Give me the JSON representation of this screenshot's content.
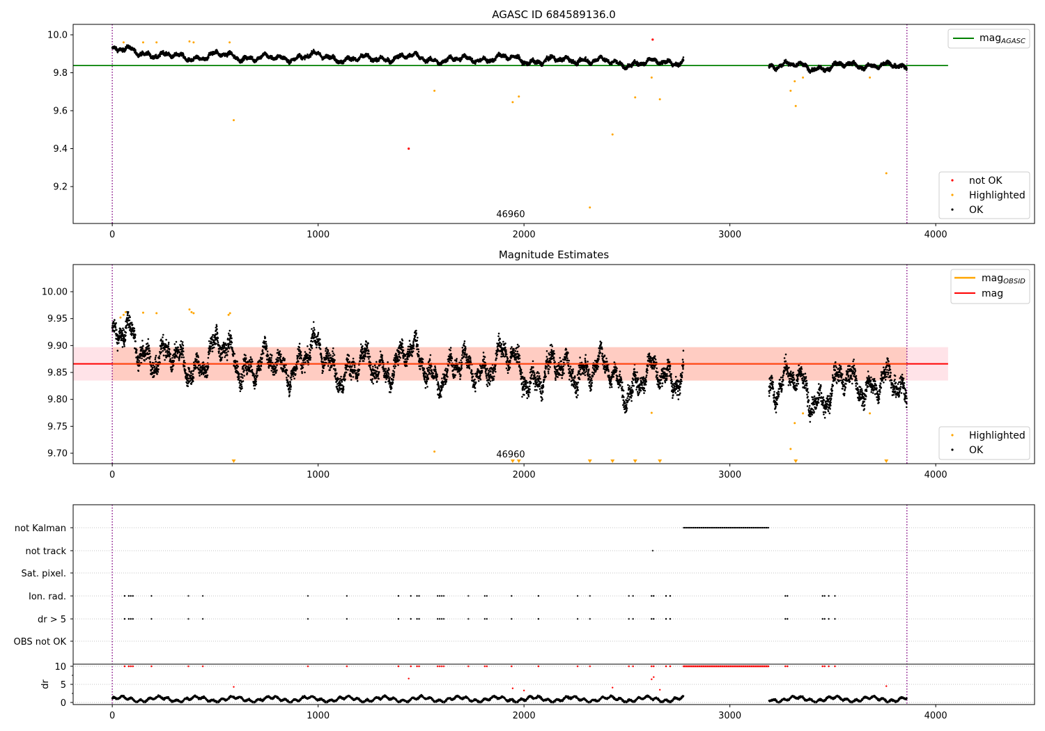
{
  "chart_data": [
    {
      "type": "scatter",
      "title": "AGASC ID 684589136.0",
      "xlim": [
        -190,
        4480
      ],
      "ylim": [
        9.0,
        10.05
      ],
      "x_ticks": [
        "0",
        "1000",
        "2000",
        "3000",
        "4000"
      ],
      "x_tick_values": [
        0,
        1000,
        2000,
        3000,
        4000
      ],
      "y_ticks": [
        "9.2",
        "9.4",
        "9.6",
        "9.8",
        "10.0"
      ],
      "y_tick_values": [
        9.2,
        9.4,
        9.6,
        9.8,
        10.0
      ],
      "obsid_label": "46960",
      "obsid_label_x": 1930,
      "vlines": [
        0,
        3860
      ],
      "hline": {
        "y": 9.838,
        "x": [
          -190,
          4060
        ],
        "color": "#008000"
      },
      "legend_upper": {
        "label": "mag",
        "sub": "AGASC",
        "placement": "top-right"
      },
      "legend_lower": {
        "placement": "bottom-right",
        "items": [
          {
            "label": "not OK",
            "color": "#ff0000"
          },
          {
            "label": "Highlighted",
            "color": "#ffa500"
          },
          {
            "label": "OK",
            "color": "#000000"
          }
        ]
      },
      "highlighted": [
        {
          "x": 55,
          "y": 9.96
        },
        {
          "x": 150,
          "y": 9.96
        },
        {
          "x": 215,
          "y": 9.96
        },
        {
          "x": 375,
          "y": 9.965
        },
        {
          "x": 395,
          "y": 9.96
        },
        {
          "x": 570,
          "y": 9.96
        },
        {
          "x": 590,
          "y": 9.55
        },
        {
          "x": 1565,
          "y": 9.705
        },
        {
          "x": 1945,
          "y": 9.645
        },
        {
          "x": 1975,
          "y": 9.675
        },
        {
          "x": 2320,
          "y": 9.09
        },
        {
          "x": 2430,
          "y": 9.475
        },
        {
          "x": 2540,
          "y": 9.67
        },
        {
          "x": 2620,
          "y": 9.775
        },
        {
          "x": 2660,
          "y": 9.66
        },
        {
          "x": 3295,
          "y": 9.705
        },
        {
          "x": 3315,
          "y": 9.755
        },
        {
          "x": 3320,
          "y": 9.625
        },
        {
          "x": 3355,
          "y": 9.775
        },
        {
          "x": 3680,
          "y": 9.775
        },
        {
          "x": 3760,
          "y": 9.27
        }
      ],
      "not_ok": [
        {
          "x": 1440,
          "y": 9.4
        },
        {
          "x": 2625,
          "y": 9.975
        }
      ]
    },
    {
      "type": "scatter",
      "title": "Magnitude Estimates",
      "xlim": [
        -190,
        4480
      ],
      "ylim": [
        9.68,
        10.05
      ],
      "x_ticks": [
        "0",
        "1000",
        "2000",
        "3000",
        "4000"
      ],
      "x_tick_values": [
        0,
        1000,
        2000,
        3000,
        4000
      ],
      "y_ticks": [
        "9.70",
        "9.75",
        "9.80",
        "9.85",
        "9.90",
        "9.95",
        "10.00"
      ],
      "y_tick_values": [
        9.7,
        9.75,
        9.8,
        9.85,
        9.9,
        9.95,
        10.0
      ],
      "obsid_label": "46960",
      "obsid_label_x": 1930,
      "vlines": [
        0,
        3860
      ],
      "mag_line": {
        "y": 9.866,
        "band": [
          9.835,
          9.897
        ],
        "x": [
          -190,
          4060
        ],
        "color": "#ff0000",
        "band_color": "#ffc0cb"
      },
      "obsid_band": {
        "x": [
          0,
          3860
        ],
        "band": [
          9.835,
          9.897
        ],
        "color": "#ffa07a"
      },
      "legend_upper": {
        "placement": "top-right",
        "items": [
          {
            "label": "mag",
            "sub": "OBSID",
            "color": "#ffa500"
          },
          {
            "label": "mag",
            "sub": "",
            "color": "#ff0000"
          }
        ]
      },
      "legend_lower": {
        "placement": "bottom-right",
        "items": [
          {
            "label": "Highlighted",
            "color": "#ffa500"
          },
          {
            "label": "OK",
            "color": "#000000"
          }
        ]
      },
      "highlighted": [
        {
          "x": 40,
          "y": 9.952
        },
        {
          "x": 55,
          "y": 9.957
        },
        {
          "x": 65,
          "y": 9.962
        },
        {
          "x": 150,
          "y": 9.961
        },
        {
          "x": 215,
          "y": 9.96
        },
        {
          "x": 375,
          "y": 9.967
        },
        {
          "x": 385,
          "y": 9.962
        },
        {
          "x": 395,
          "y": 9.96
        },
        {
          "x": 565,
          "y": 9.957
        },
        {
          "x": 572,
          "y": 9.96
        },
        {
          "x": 1565,
          "y": 9.703
        },
        {
          "x": 2620,
          "y": 9.775
        },
        {
          "x": 3295,
          "y": 9.708
        },
        {
          "x": 3315,
          "y": 9.756
        },
        {
          "x": 3355,
          "y": 9.774
        },
        {
          "x": 3680,
          "y": 9.774
        }
      ],
      "off_scale": [
        590,
        1945,
        1975,
        2320,
        2430,
        2540,
        2660,
        3320,
        3760
      ]
    },
    {
      "type": "scatter",
      "xlim": [
        -190,
        4480
      ],
      "vlines": [
        0,
        3860
      ],
      "flag_rows": [
        "not Kalman",
        "not track",
        "Sat. pixel.",
        "Ion. rad.",
        "dr > 5",
        "OBS not OK"
      ],
      "not_kalman_range": [
        2775,
        3190
      ],
      "not_track_x": [
        2625
      ],
      "ion_rad_x": [
        60,
        80,
        90,
        100,
        190,
        370,
        440,
        950,
        1140,
        1390,
        1450,
        1480,
        1490,
        1580,
        1590,
        1600,
        1610,
        1730,
        1810,
        1820,
        1940,
        2070,
        2260,
        2320,
        2510,
        2530,
        2620,
        2630,
        2690,
        2710,
        3270,
        3280,
        3450,
        3460,
        3480,
        3510
      ],
      "dr_ylabel": "dr",
      "dr_ticks": [
        "0",
        "5",
        "10"
      ],
      "dr_tick_values": [
        0,
        5,
        10
      ],
      "dr_ylim": [
        -0.5,
        10.5
      ],
      "x_ticks": [
        "0",
        "1000",
        "2000",
        "3000",
        "4000"
      ],
      "x_tick_values": [
        0,
        1000,
        2000,
        3000,
        4000
      ],
      "dr_outliers": [
        {
          "x": 590,
          "y": 4.3
        },
        {
          "x": 1440,
          "y": 6.6
        },
        {
          "x": 1945,
          "y": 3.9
        },
        {
          "x": 2000,
          "y": 3.3
        },
        {
          "x": 2430,
          "y": 4.1
        },
        {
          "x": 2620,
          "y": 6.4
        },
        {
          "x": 2630,
          "y": 7.0
        },
        {
          "x": 2660,
          "y": 3.5
        },
        {
          "x": 3760,
          "y": 4.5
        }
      ]
    }
  ]
}
